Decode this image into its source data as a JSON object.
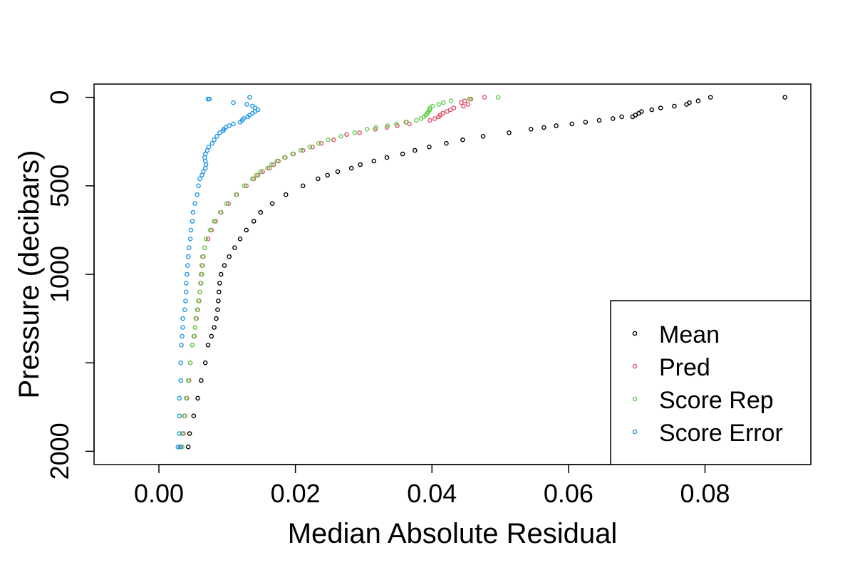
{
  "chart_data": {
    "type": "scatter",
    "xlabel": "Median Absolute Residual",
    "ylabel": "Pressure (decibars)",
    "xlim": [
      -0.0095,
      0.0955
    ],
    "ylim": [
      2075,
      -75
    ],
    "y_reversed": true,
    "x_ticks": [
      0.0,
      0.02,
      0.04,
      0.06,
      0.08
    ],
    "x_tick_labels": [
      "0.00",
      "0.02",
      "0.04",
      "0.06",
      "0.08"
    ],
    "y_ticks": [
      0,
      500,
      1000,
      1500,
      2000
    ],
    "y_tick_labels": [
      "0",
      "500",
      "1000",
      "",
      "2000"
    ],
    "legend_position": "bottom-right",
    "marker": "open-circle",
    "series": [
      {
        "name": "Mean",
        "color": "#000000",
        "points": [
          [
            0.0917,
            0
          ],
          [
            0.0808,
            0
          ],
          [
            0.079,
            20
          ],
          [
            0.0777,
            30
          ],
          [
            0.0773,
            40
          ],
          [
            0.0755,
            50
          ],
          [
            0.0735,
            60
          ],
          [
            0.0722,
            70
          ],
          [
            0.0707,
            80
          ],
          [
            0.0703,
            90
          ],
          [
            0.0698,
            100
          ],
          [
            0.0694,
            110
          ],
          [
            0.0678,
            110
          ],
          [
            0.0665,
            120
          ],
          [
            0.0645,
            130
          ],
          [
            0.0625,
            140
          ],
          [
            0.0605,
            150
          ],
          [
            0.0582,
            160
          ],
          [
            0.0564,
            170
          ],
          [
            0.0545,
            180
          ],
          [
            0.0513,
            200
          ],
          [
            0.0475,
            220
          ],
          [
            0.0445,
            240
          ],
          [
            0.0421,
            260
          ],
          [
            0.0396,
            280
          ],
          [
            0.0375,
            300
          ],
          [
            0.0357,
            320
          ],
          [
            0.0334,
            340
          ],
          [
            0.0315,
            360
          ],
          [
            0.0295,
            380
          ],
          [
            0.0282,
            400
          ],
          [
            0.0262,
            420
          ],
          [
            0.0247,
            440
          ],
          [
            0.0233,
            460
          ],
          [
            0.0211,
            500
          ],
          [
            0.0186,
            550
          ],
          [
            0.0166,
            600
          ],
          [
            0.0149,
            650
          ],
          [
            0.0139,
            700
          ],
          [
            0.0128,
            750
          ],
          [
            0.0119,
            800
          ],
          [
            0.0111,
            850
          ],
          [
            0.0103,
            900
          ],
          [
            0.0096,
            950
          ],
          [
            0.0091,
            1000
          ],
          [
            0.0089,
            1050
          ],
          [
            0.0088,
            1100
          ],
          [
            0.0087,
            1150
          ],
          [
            0.0086,
            1200
          ],
          [
            0.0084,
            1250
          ],
          [
            0.0081,
            1300
          ],
          [
            0.0077,
            1350
          ],
          [
            0.0072,
            1400
          ],
          [
            0.0068,
            1500
          ],
          [
            0.0062,
            1600
          ],
          [
            0.0057,
            1700
          ],
          [
            0.0051,
            1800
          ],
          [
            0.0045,
            1900
          ],
          [
            0.0043,
            1975
          ]
        ]
      },
      {
        "name": "Pred",
        "color": "#DF536B",
        "points": [
          [
            0.0477,
            0
          ],
          [
            0.0457,
            10
          ],
          [
            0.0448,
            20
          ],
          [
            0.0443,
            30
          ],
          [
            0.0453,
            40
          ],
          [
            0.0446,
            50
          ],
          [
            0.0432,
            60
          ],
          [
            0.0427,
            70
          ],
          [
            0.0422,
            80
          ],
          [
            0.0416,
            90
          ],
          [
            0.0412,
            100
          ],
          [
            0.041,
            110
          ],
          [
            0.0404,
            120
          ],
          [
            0.0397,
            130
          ],
          [
            0.0362,
            140
          ],
          [
            0.0367,
            150
          ],
          [
            0.0349,
            160
          ],
          [
            0.0334,
            170
          ],
          [
            0.0317,
            180
          ],
          [
            0.0294,
            200
          ],
          [
            0.0275,
            210
          ],
          [
            0.0256,
            240
          ],
          [
            0.0238,
            260
          ],
          [
            0.0225,
            280
          ],
          [
            0.0211,
            300
          ],
          [
            0.0197,
            320
          ],
          [
            0.0185,
            340
          ],
          [
            0.0175,
            360
          ],
          [
            0.0168,
            380
          ],
          [
            0.0162,
            400
          ],
          [
            0.0152,
            420
          ],
          [
            0.0145,
            440
          ],
          [
            0.0139,
            460
          ],
          [
            0.0128,
            500
          ],
          [
            0.0114,
            550
          ],
          [
            0.0102,
            600
          ],
          [
            0.0091,
            650
          ],
          [
            0.0083,
            700
          ],
          [
            0.0077,
            750
          ],
          [
            0.0072,
            800
          ],
          [
            0.0067,
            850
          ],
          [
            0.0064,
            900
          ],
          [
            0.0063,
            950
          ],
          [
            0.0062,
            1000
          ],
          [
            0.0061,
            1050
          ],
          [
            0.006,
            1100
          ],
          [
            0.0059,
            1150
          ],
          [
            0.0057,
            1200
          ],
          [
            0.0055,
            1250
          ],
          [
            0.0053,
            1300
          ],
          [
            0.0052,
            1350
          ],
          [
            0.0049,
            1400
          ],
          [
            0.0046,
            1500
          ],
          [
            0.0044,
            1600
          ],
          [
            0.0041,
            1700
          ],
          [
            0.0038,
            1800
          ],
          [
            0.0036,
            1900
          ],
          [
            0.0032,
            1975
          ]
        ]
      },
      {
        "name": "Score Rep",
        "color": "#61D04F",
        "points": [
          [
            0.0497,
            0
          ],
          [
            0.0455,
            10
          ],
          [
            0.0428,
            20
          ],
          [
            0.0417,
            30
          ],
          [
            0.041,
            40
          ],
          [
            0.0401,
            50
          ],
          [
            0.0397,
            60
          ],
          [
            0.0397,
            70
          ],
          [
            0.0395,
            80
          ],
          [
            0.0393,
            90
          ],
          [
            0.0391,
            100
          ],
          [
            0.0388,
            110
          ],
          [
            0.0384,
            120
          ],
          [
            0.0377,
            130
          ],
          [
            0.0363,
            140
          ],
          [
            0.0348,
            150
          ],
          [
            0.0335,
            160
          ],
          [
            0.0318,
            170
          ],
          [
            0.0305,
            180
          ],
          [
            0.0287,
            200
          ],
          [
            0.0267,
            220
          ],
          [
            0.0248,
            240
          ],
          [
            0.0234,
            260
          ],
          [
            0.0221,
            280
          ],
          [
            0.0208,
            300
          ],
          [
            0.0196,
            320
          ],
          [
            0.0184,
            340
          ],
          [
            0.0173,
            360
          ],
          [
            0.0165,
            380
          ],
          [
            0.0159,
            400
          ],
          [
            0.0149,
            420
          ],
          [
            0.0143,
            440
          ],
          [
            0.0137,
            460
          ],
          [
            0.0125,
            500
          ],
          [
            0.0113,
            550
          ],
          [
            0.0099,
            600
          ],
          [
            0.009,
            650
          ],
          [
            0.0081,
            700
          ],
          [
            0.0075,
            750
          ],
          [
            0.0069,
            800
          ],
          [
            0.0067,
            850
          ],
          [
            0.0065,
            900
          ],
          [
            0.0064,
            950
          ],
          [
            0.0063,
            1000
          ],
          [
            0.0062,
            1050
          ],
          [
            0.006,
            1100
          ],
          [
            0.0058,
            1150
          ],
          [
            0.0056,
            1200
          ],
          [
            0.0054,
            1250
          ],
          [
            0.0053,
            1300
          ],
          [
            0.0051,
            1350
          ],
          [
            0.0049,
            1400
          ],
          [
            0.0046,
            1500
          ],
          [
            0.0043,
            1600
          ],
          [
            0.004,
            1700
          ],
          [
            0.0037,
            1800
          ],
          [
            0.0034,
            1900
          ],
          [
            0.0034,
            1975
          ]
        ]
      },
      {
        "name": "Score Error",
        "color": "#2297E6",
        "points": [
          [
            0.0133,
            0
          ],
          [
            0.0074,
            10
          ],
          [
            0.0072,
            10
          ],
          [
            0.0109,
            30
          ],
          [
            0.0129,
            40
          ],
          [
            0.0137,
            50
          ],
          [
            0.0141,
            60
          ],
          [
            0.0145,
            70
          ],
          [
            0.0141,
            80
          ],
          [
            0.0137,
            90
          ],
          [
            0.0133,
            100
          ],
          [
            0.013,
            110
          ],
          [
            0.0124,
            120
          ],
          [
            0.0122,
            130
          ],
          [
            0.0119,
            140
          ],
          [
            0.0109,
            150
          ],
          [
            0.0103,
            160
          ],
          [
            0.0098,
            170
          ],
          [
            0.0095,
            180
          ],
          [
            0.0094,
            190
          ],
          [
            0.0089,
            200
          ],
          [
            0.0085,
            220
          ],
          [
            0.0081,
            240
          ],
          [
            0.0078,
            260
          ],
          [
            0.0073,
            280
          ],
          [
            0.0071,
            300
          ],
          [
            0.0068,
            320
          ],
          [
            0.0067,
            340
          ],
          [
            0.0068,
            360
          ],
          [
            0.0069,
            380
          ],
          [
            0.0068,
            400
          ],
          [
            0.0065,
            420
          ],
          [
            0.0063,
            440
          ],
          [
            0.006,
            460
          ],
          [
            0.0058,
            500
          ],
          [
            0.0056,
            550
          ],
          [
            0.0053,
            600
          ],
          [
            0.005,
            650
          ],
          [
            0.0049,
            700
          ],
          [
            0.0047,
            750
          ],
          [
            0.0046,
            800
          ],
          [
            0.0044,
            850
          ],
          [
            0.0043,
            900
          ],
          [
            0.0042,
            950
          ],
          [
            0.0041,
            1000
          ],
          [
            0.004,
            1050
          ],
          [
            0.004,
            1100
          ],
          [
            0.0039,
            1150
          ],
          [
            0.0038,
            1200
          ],
          [
            0.0035,
            1250
          ],
          [
            0.0035,
            1300
          ],
          [
            0.0034,
            1350
          ],
          [
            0.0033,
            1400
          ],
          [
            0.0032,
            1500
          ],
          [
            0.0032,
            1600
          ],
          [
            0.003,
            1700
          ],
          [
            0.003,
            1800
          ],
          [
            0.003,
            1900
          ],
          [
            0.0028,
            1975
          ],
          [
            0.0031,
            1975
          ]
        ]
      }
    ]
  }
}
